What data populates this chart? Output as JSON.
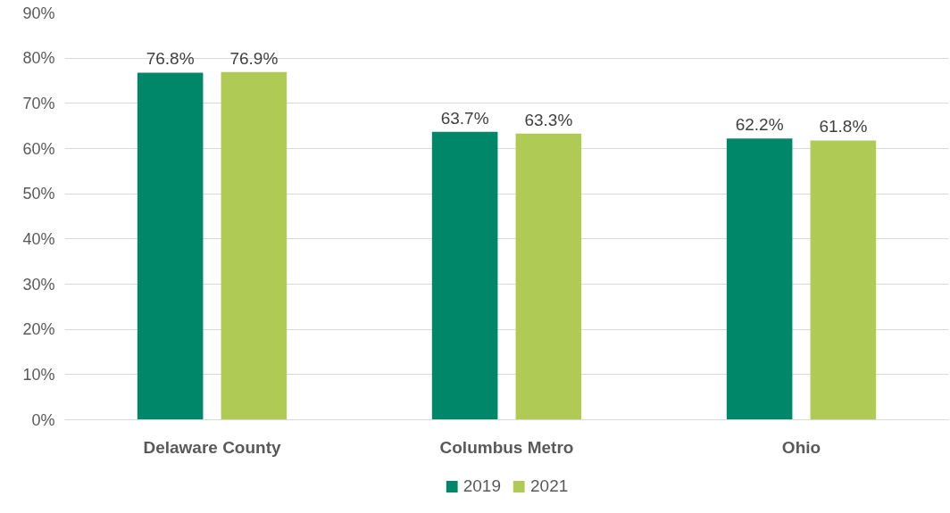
{
  "chart_data": {
    "type": "bar",
    "categories": [
      "Delaware County",
      "Columbus Metro",
      "Ohio"
    ],
    "series": [
      {
        "name": "2019",
        "color": "#00876a",
        "values": [
          76.8,
          63.7,
          62.2
        ],
        "value_labels": [
          "76.8%",
          "63.7%",
          "62.2%"
        ]
      },
      {
        "name": "2021",
        "color": "#b0cb55",
        "values": [
          76.9,
          63.3,
          61.8
        ],
        "value_labels": [
          "76.9%",
          "63.3%",
          "61.8%"
        ]
      }
    ],
    "ylim": [
      0,
      90
    ],
    "yticks": [
      {
        "value": 0,
        "label": "0%"
      },
      {
        "value": 10,
        "label": "10%"
      },
      {
        "value": 20,
        "label": "20%"
      },
      {
        "value": 30,
        "label": "30%"
      },
      {
        "value": 40,
        "label": "40%"
      },
      {
        "value": 50,
        "label": "50%"
      },
      {
        "value": 60,
        "label": "60%"
      },
      {
        "value": 70,
        "label": "70%"
      },
      {
        "value": 80,
        "label": "80%"
      },
      {
        "value": 90,
        "label": "90%"
      }
    ],
    "grid": "y",
    "legend": "bottom"
  }
}
